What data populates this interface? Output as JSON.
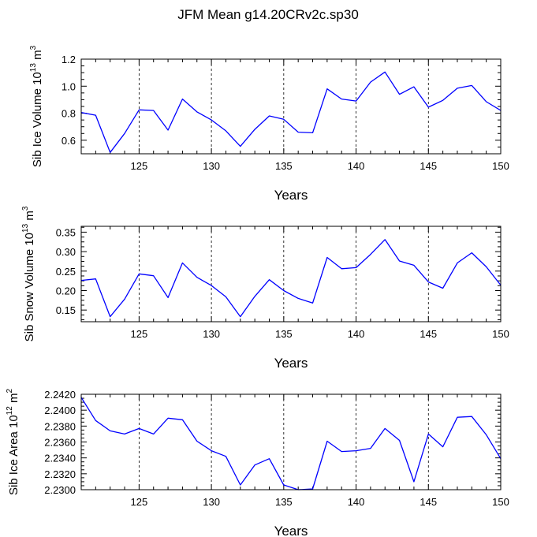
{
  "title": "JFM Mean g14.20CRv2c.sp30",
  "colors": {
    "line": "#0000ff",
    "axes": "#000000",
    "grid": "#000000"
  },
  "chart_data": [
    {
      "type": "line",
      "xlabel": "Years",
      "ylabel": {
        "text": "Sib Ice Volume 10",
        "exp": "13",
        "unit": "m",
        "unit_exp": "3"
      },
      "xlim": [
        121,
        150
      ],
      "ylim": [
        0.5,
        1.2
      ],
      "yticks": [
        0.6,
        0.8,
        1.0,
        1.2
      ],
      "ytick_labels": [
        "0.6",
        "0.8",
        "1.0",
        "1.2"
      ],
      "xticks": [
        125,
        130,
        135,
        140,
        145,
        150
      ],
      "xtick_labels": [
        "125",
        "130",
        "135",
        "140",
        "145",
        "150"
      ],
      "grid": "vertical dashed",
      "x": [
        121,
        122,
        123,
        124,
        125,
        126,
        127,
        128,
        129,
        130,
        131,
        132,
        133,
        134,
        135,
        136,
        137,
        138,
        139,
        140,
        141,
        142,
        143,
        144,
        145,
        146,
        147,
        148,
        149,
        150
      ],
      "series": [
        {
          "values": [
            0.805,
            0.785,
            0.51,
            0.65,
            0.825,
            0.82,
            0.675,
            0.905,
            0.81,
            0.75,
            0.67,
            0.555,
            0.68,
            0.78,
            0.755,
            0.66,
            0.655,
            0.98,
            0.905,
            0.89,
            1.03,
            1.105,
            0.94,
            0.995,
            0.845,
            0.895,
            0.985,
            1.005,
            0.885,
            0.82
          ]
        }
      ]
    },
    {
      "type": "line",
      "xlabel": "Years",
      "ylabel": {
        "text": "Sib Snow Volume 10",
        "exp": "13",
        "unit": "m",
        "unit_exp": "3"
      },
      "xlim": [
        121,
        150
      ],
      "ylim": [
        0.12,
        0.365
      ],
      "yticks": [
        0.15,
        0.2,
        0.25,
        0.3,
        0.35
      ],
      "ytick_labels": [
        "0.15",
        "0.20",
        "0.25",
        "0.30",
        "0.35"
      ],
      "xticks": [
        125,
        130,
        135,
        140,
        145,
        150
      ],
      "xtick_labels": [
        "125",
        "130",
        "135",
        "140",
        "145",
        "150"
      ],
      "grid": "vertical dashed",
      "x": [
        121,
        122,
        123,
        124,
        125,
        126,
        127,
        128,
        129,
        130,
        131,
        132,
        133,
        134,
        135,
        136,
        137,
        138,
        139,
        140,
        141,
        142,
        143,
        144,
        145,
        146,
        147,
        148,
        149,
        150
      ],
      "series": [
        {
          "values": [
            0.226,
            0.23,
            0.133,
            0.178,
            0.243,
            0.238,
            0.182,
            0.271,
            0.234,
            0.213,
            0.184,
            0.133,
            0.185,
            0.228,
            0.2,
            0.18,
            0.168,
            0.285,
            0.256,
            0.259,
            0.293,
            0.331,
            0.276,
            0.265,
            0.222,
            0.206,
            0.271,
            0.297,
            0.261,
            0.214
          ]
        }
      ]
    },
    {
      "type": "line",
      "xlabel": "Years",
      "ylabel": {
        "text": "Sib Ice Area 10",
        "exp": "12",
        "unit": "m",
        "unit_exp": "2"
      },
      "xlim": [
        121,
        150
      ],
      "ylim": [
        2.23,
        2.242
      ],
      "yticks": [
        2.23,
        2.232,
        2.234,
        2.236,
        2.238,
        2.24,
        2.242
      ],
      "ytick_labels": [
        "2.2300",
        "2.2320",
        "2.2340",
        "2.2360",
        "2.2380",
        "2.2400",
        "2.2420"
      ],
      "xticks": [
        125,
        130,
        135,
        140,
        145,
        150
      ],
      "xtick_labels": [
        "125",
        "130",
        "135",
        "140",
        "145",
        "150"
      ],
      "grid": "vertical dashed",
      "x": [
        121,
        122,
        123,
        124,
        125,
        126,
        127,
        128,
        129,
        130,
        131,
        132,
        133,
        134,
        135,
        136,
        137,
        138,
        139,
        140,
        141,
        142,
        143,
        144,
        145,
        146,
        147,
        148,
        149,
        150
      ],
      "series": [
        {
          "values": [
            2.2416,
            2.2387,
            2.2374,
            2.237,
            2.2377,
            2.237,
            2.239,
            2.2388,
            2.2361,
            2.2349,
            2.2342,
            2.2306,
            2.2331,
            2.2339,
            2.2306,
            2.23,
            2.2301,
            2.2361,
            2.2348,
            2.2349,
            2.2352,
            2.2377,
            2.2362,
            2.231,
            2.237,
            2.2354,
            2.2391,
            2.2392,
            2.2369,
            2.2339
          ]
        }
      ]
    }
  ]
}
